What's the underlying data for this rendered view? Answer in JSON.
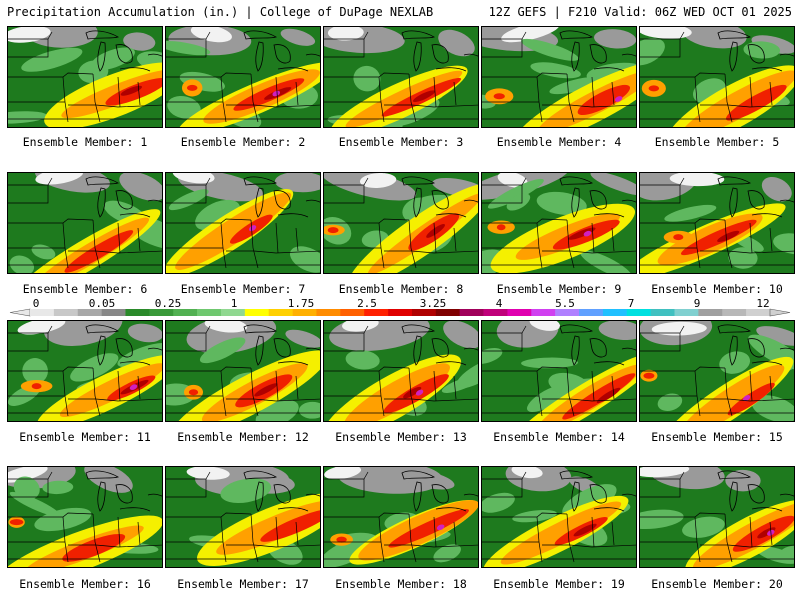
{
  "header": {
    "left_title": "Precipitation Accumulation (in.) | College of DuPage NEXLAB",
    "right_title": "12Z GEFS | F210 Valid: 06Z WED OCT 01 2025"
  },
  "colorbar": {
    "labels": [
      "0",
      "0.05",
      "0.25",
      "1",
      "1.75",
      "2.5",
      "3.25",
      "4",
      "5.5",
      "7",
      "9",
      "12"
    ],
    "colors": [
      "#e8e8e8",
      "#c8c8c8",
      "#a8a8a8",
      "#888888",
      "#2a8a2a",
      "#3a9a3a",
      "#52b152",
      "#6fc86f",
      "#90d890",
      "#ffff00",
      "#ffd000",
      "#ffb000",
      "#ff8c00",
      "#ff6000",
      "#ff2000",
      "#e00000",
      "#b00000",
      "#800000",
      "#a0005a",
      "#c0007a",
      "#e000b0",
      "#d040f0",
      "#b080ff",
      "#60a0ff",
      "#20c0ff",
      "#00e0e0",
      "#40c0c0",
      "#80d0d0",
      "#a0a0a0",
      "#b8b8b8",
      "#d0d0d0"
    ]
  },
  "panel_colors": {
    "base": "#1e7a1e",
    "light_green": "#5fb85f",
    "gray": "#9a9a9a",
    "white": "#f2f2f2",
    "yellow": "#f5f000",
    "orange": "#ffa000",
    "red": "#f02000",
    "darkred": "#b00000",
    "magenta": "#d020c0",
    "borders": "#000000"
  },
  "members": [
    {
      "label": "Ensemble Member: 1"
    },
    {
      "label": "Ensemble Member: 2"
    },
    {
      "label": "Ensemble Member: 3"
    },
    {
      "label": "Ensemble Member: 4"
    },
    {
      "label": "Ensemble Member: 5"
    },
    {
      "label": "Ensemble Member: 6"
    },
    {
      "label": "Ensemble Member: 7"
    },
    {
      "label": "Ensemble Member: 8"
    },
    {
      "label": "Ensemble Member: 9"
    },
    {
      "label": "Ensemble Member: 10"
    },
    {
      "label": "Ensemble Member: 11"
    },
    {
      "label": "Ensemble Member: 12"
    },
    {
      "label": "Ensemble Member: 13"
    },
    {
      "label": "Ensemble Member: 14"
    },
    {
      "label": "Ensemble Member: 15"
    },
    {
      "label": "Ensemble Member: 16"
    },
    {
      "label": "Ensemble Member: 17"
    },
    {
      "label": "Ensemble Member: 18"
    },
    {
      "label": "Ensemble Member: 19"
    },
    {
      "label": "Ensemble Member: 20"
    }
  ]
}
